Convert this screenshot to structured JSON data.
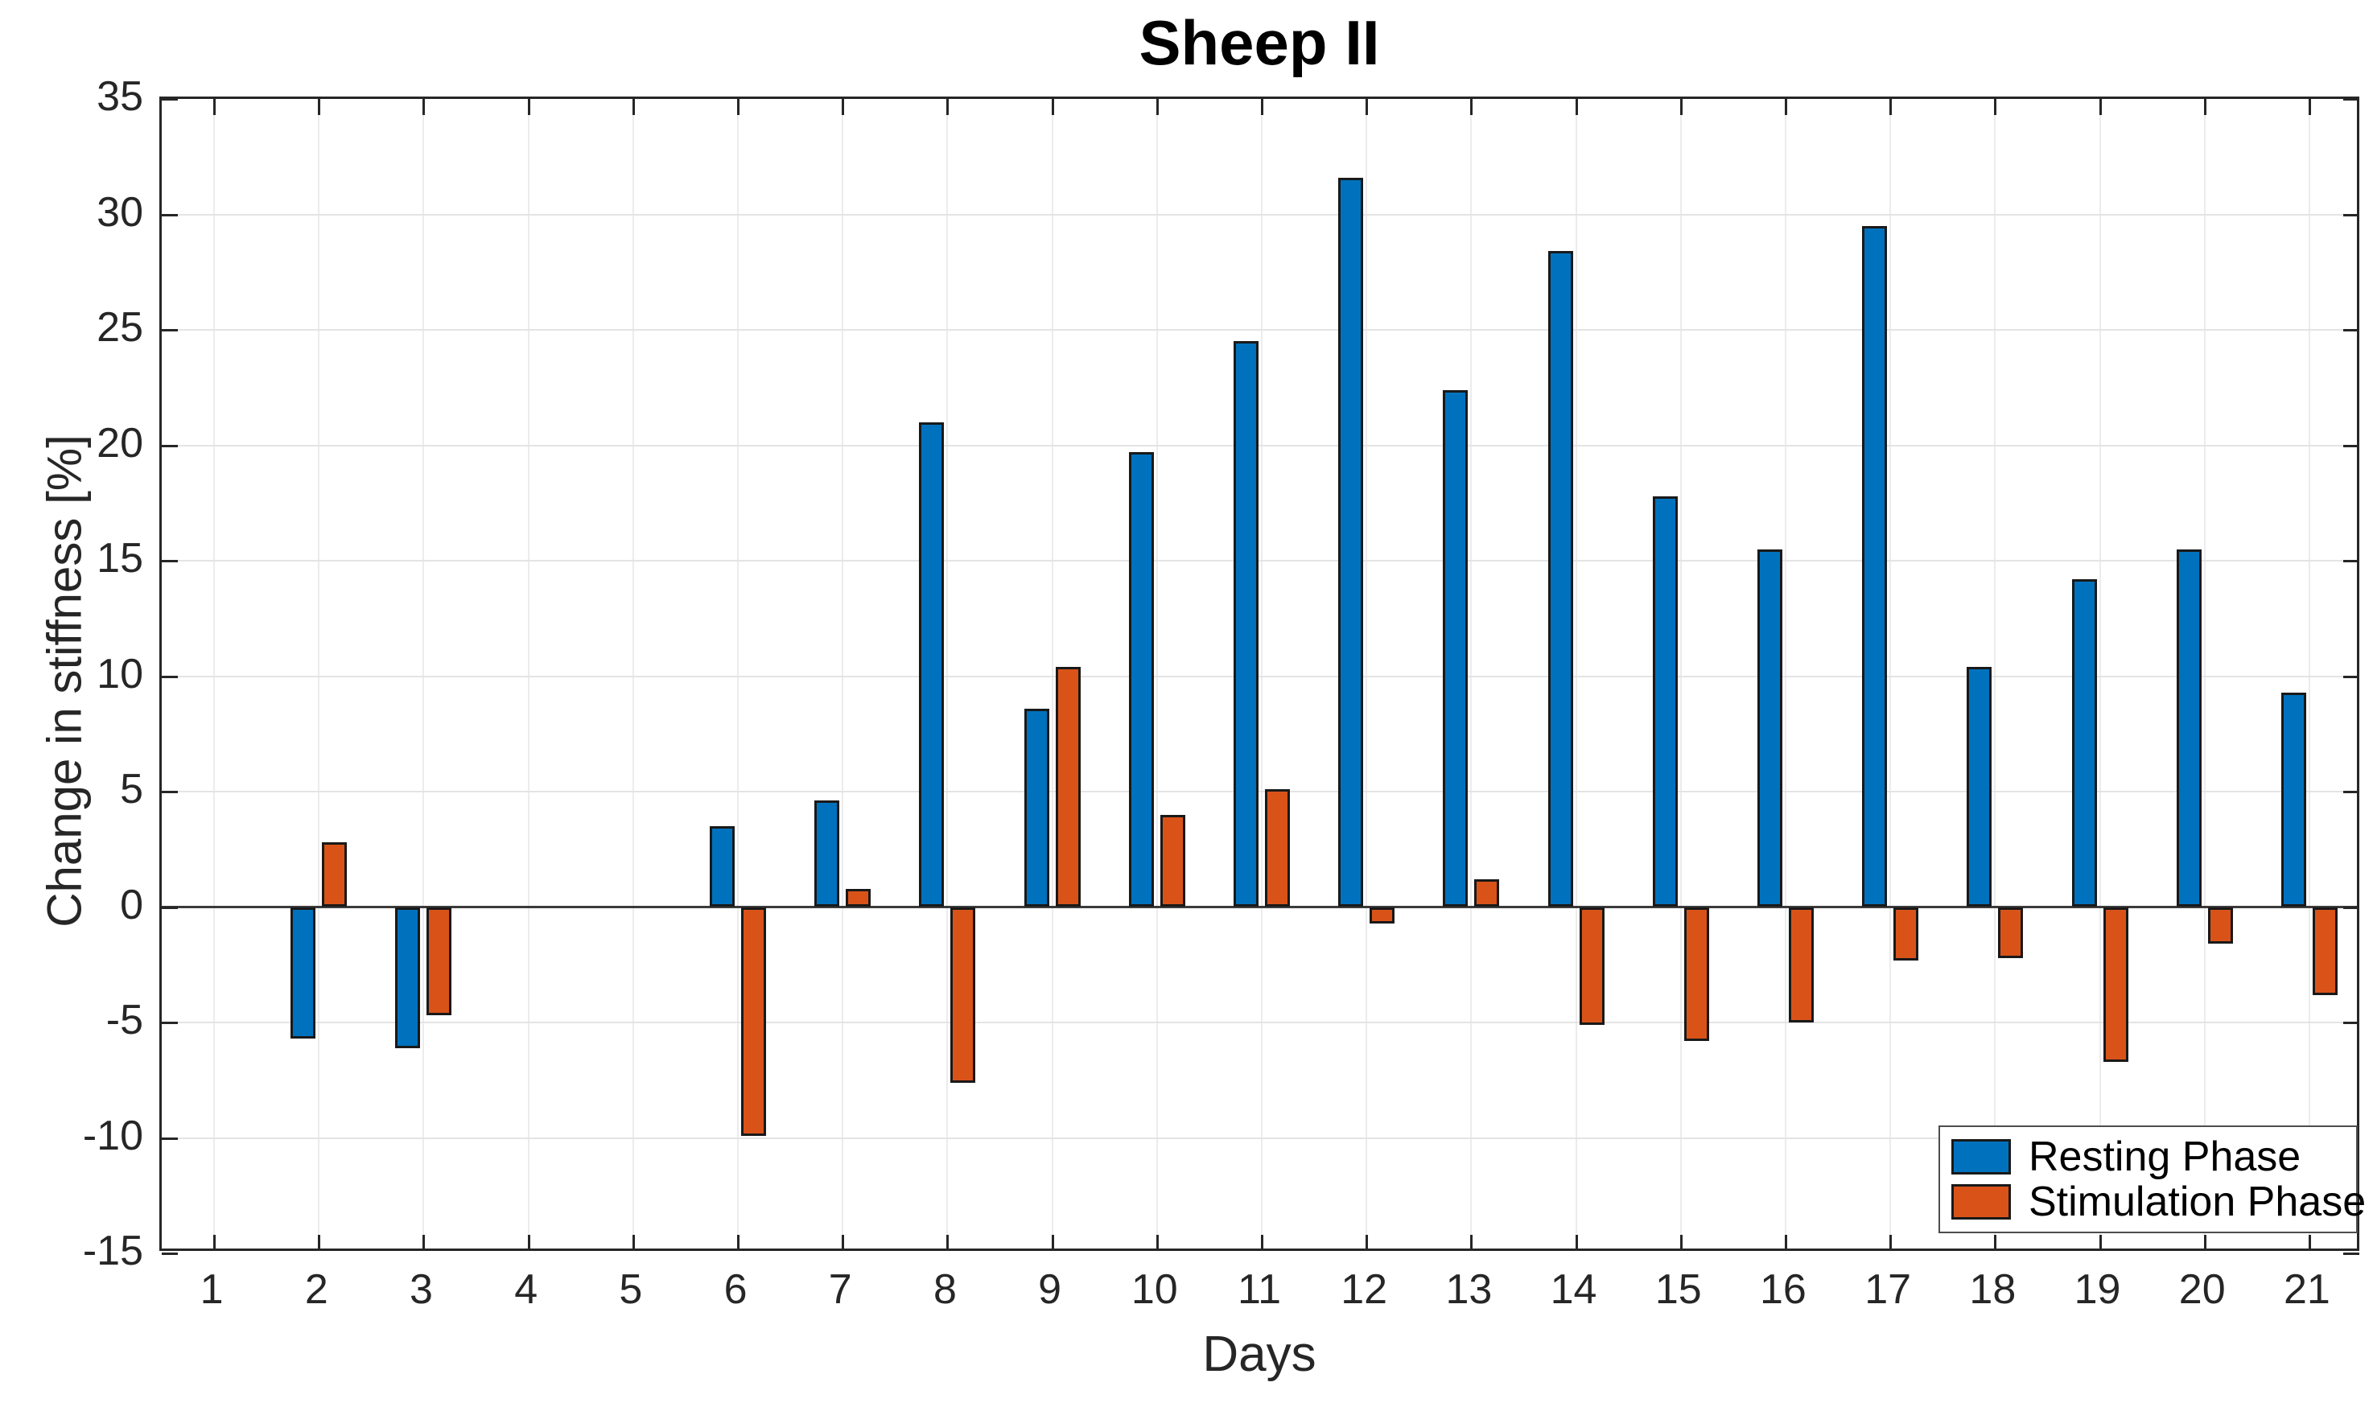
{
  "title": "Sheep II",
  "colors": {
    "resting_blue": "#0072BD",
    "stimulation_orange": "#D95319",
    "bar_edge": "#191919",
    "axis": "#262626",
    "grid": "#e4e4e4",
    "zero_line": "#3b3b3b",
    "background": "#ffffff"
  },
  "legend": {
    "items": [
      {
        "label": "Resting Phase",
        "color": "#0072BD"
      },
      {
        "label": "Stimulation Phase",
        "color": "#D95319"
      }
    ]
  },
  "chart_data": {
    "type": "bar",
    "title": "Sheep II",
    "xlabel": "Days",
    "ylabel": "Change in stiffness [%]",
    "ylim": [
      -15,
      35
    ],
    "ytick_step": 5,
    "grid": true,
    "legend_position": "lower right",
    "categories": [
      1,
      2,
      3,
      4,
      5,
      6,
      7,
      8,
      9,
      10,
      11,
      12,
      13,
      14,
      15,
      16,
      17,
      18,
      19,
      20,
      21
    ],
    "series": [
      {
        "name": "Resting Phase",
        "color": "#0072BD",
        "values": [
          null,
          -5.7,
          -6.1,
          null,
          null,
          3.5,
          4.6,
          21.0,
          8.6,
          19.7,
          24.5,
          31.6,
          22.4,
          28.4,
          17.8,
          15.5,
          29.5,
          10.4,
          14.2,
          15.5,
          9.3
        ]
      },
      {
        "name": "Stimulation Phase",
        "color": "#D95319",
        "values": [
          null,
          2.8,
          -4.7,
          null,
          null,
          -9.9,
          0.8,
          -7.6,
          10.4,
          4.0,
          5.1,
          -0.7,
          1.2,
          -5.1,
          -5.8,
          -5.0,
          -2.3,
          -2.2,
          -6.7,
          -1.6,
          -3.8
        ]
      }
    ]
  }
}
